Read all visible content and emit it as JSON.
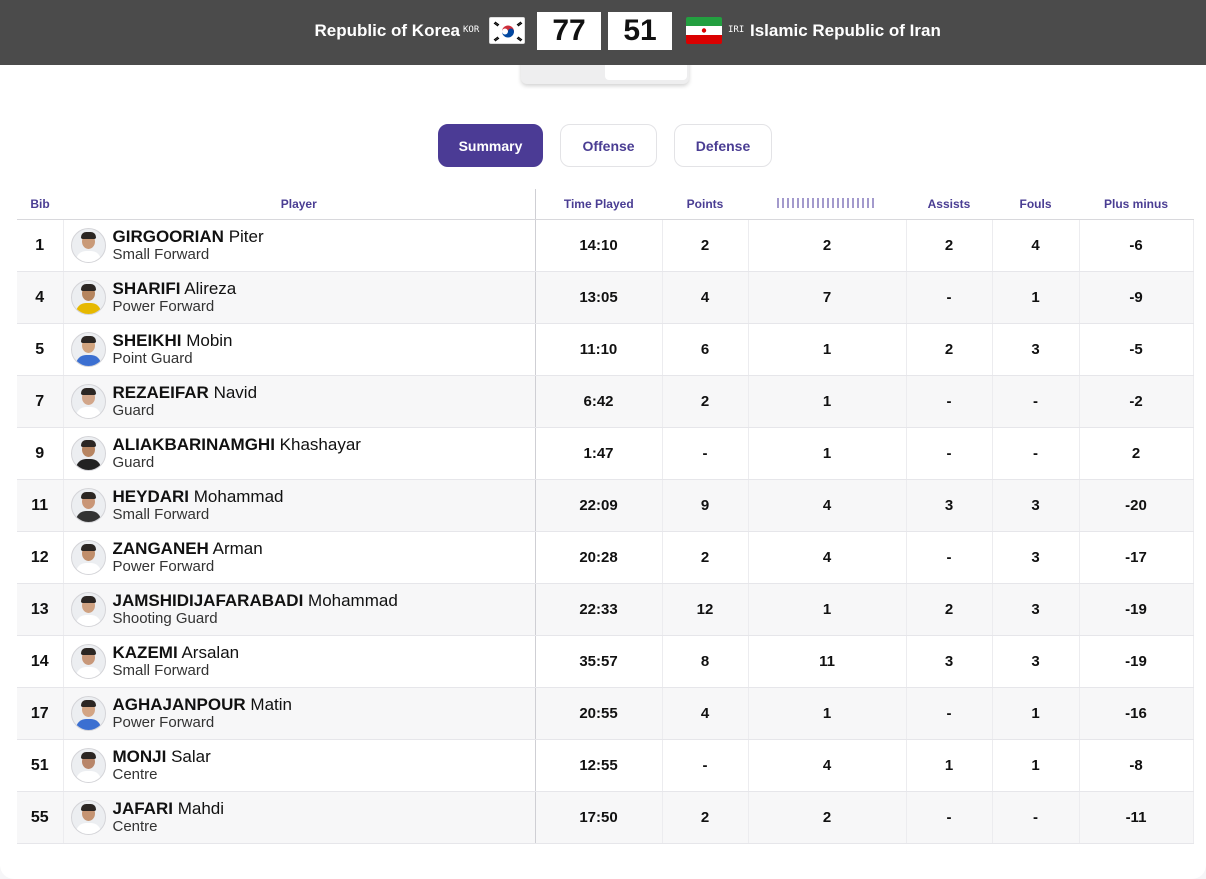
{
  "header": {
    "home": {
      "name": "Republic of Korea",
      "code": "KOR",
      "score": "77"
    },
    "away": {
      "name": "Islamic Republic of Iran",
      "code": "IRI",
      "score": "51"
    }
  },
  "switcher": {
    "home_code": "KOR",
    "away_code": "IRI"
  },
  "tabs": [
    {
      "label": "Summary",
      "active": true
    },
    {
      "label": "Offense",
      "active": false
    },
    {
      "label": "Defense",
      "active": false
    }
  ],
  "columns": {
    "bib": "Bib",
    "player": "Player",
    "time": "Time Played",
    "points": "Points",
    "assists": "Assists",
    "fouls": "Fouls",
    "plusminus": "Plus minus"
  },
  "players": [
    {
      "bib": "1",
      "last": "GIRGOORIAN",
      "first": "Piter",
      "pos": "Small Forward",
      "time": "14:10",
      "points": "2",
      "col5": "2",
      "assists": "2",
      "fouls": "4",
      "pm": "-6"
    },
    {
      "bib": "4",
      "last": "SHARIFI",
      "first": "Alireza",
      "pos": "Power Forward",
      "time": "13:05",
      "points": "4",
      "col5": "7",
      "assists": "-",
      "fouls": "1",
      "pm": "-9"
    },
    {
      "bib": "5",
      "last": "SHEIKHI",
      "first": "Mobin",
      "pos": "Point Guard",
      "time": "11:10",
      "points": "6",
      "col5": "1",
      "assists": "2",
      "fouls": "3",
      "pm": "-5"
    },
    {
      "bib": "7",
      "last": "REZAEIFAR",
      "first": "Navid",
      "pos": "Guard",
      "time": "6:42",
      "points": "2",
      "col5": "1",
      "assists": "-",
      "fouls": "-",
      "pm": "-2"
    },
    {
      "bib": "9",
      "last": "ALIAKBARINAMGHI",
      "first": "Khashayar",
      "pos": "Guard",
      "time": "1:47",
      "points": "-",
      "col5": "1",
      "assists": "-",
      "fouls": "-",
      "pm": "2"
    },
    {
      "bib": "11",
      "last": "HEYDARI",
      "first": "Mohammad",
      "pos": "Small Forward",
      "time": "22:09",
      "points": "9",
      "col5": "4",
      "assists": "3",
      "fouls": "3",
      "pm": "-20"
    },
    {
      "bib": "12",
      "last": "ZANGANEH",
      "first": "Arman",
      "pos": "Power Forward",
      "time": "20:28",
      "points": "2",
      "col5": "4",
      "assists": "-",
      "fouls": "3",
      "pm": "-17"
    },
    {
      "bib": "13",
      "last": "JAMSHIDIJAFARABADI",
      "first": "Mohammad",
      "pos": "Shooting Guard",
      "time": "22:33",
      "points": "12",
      "col5": "1",
      "assists": "2",
      "fouls": "3",
      "pm": "-19"
    },
    {
      "bib": "14",
      "last": "KAZEMI",
      "first": "Arsalan",
      "pos": "Small Forward",
      "time": "35:57",
      "points": "8",
      "col5": "11",
      "assists": "3",
      "fouls": "3",
      "pm": "-19"
    },
    {
      "bib": "17",
      "last": "AGHAJANPOUR",
      "first": "Matin",
      "pos": "Power Forward",
      "time": "20:55",
      "points": "4",
      "col5": "1",
      "assists": "-",
      "fouls": "1",
      "pm": "-16"
    },
    {
      "bib": "51",
      "last": "MONJI",
      "first": "Salar",
      "pos": "Centre",
      "time": "12:55",
      "points": "-",
      "col5": "4",
      "assists": "1",
      "fouls": "1",
      "pm": "-8"
    },
    {
      "bib": "55",
      "last": "JAFARI",
      "first": "Mahdi",
      "pos": "Centre",
      "time": "17:50",
      "points": "2",
      "col5": "2",
      "assists": "-",
      "fouls": "-",
      "pm": "-11"
    }
  ],
  "avatars": [
    {
      "skin": "#c99a78",
      "shirt": "#ffffff"
    },
    {
      "skin": "#b5855f",
      "shirt": "#e6b800"
    },
    {
      "skin": "#d1a47f",
      "shirt": "#3b6fd1"
    },
    {
      "skin": "#d2a68a",
      "shirt": "#ffffff"
    },
    {
      "skin": "#b78562",
      "shirt": "#222222"
    },
    {
      "skin": "#c99677",
      "shirt": "#333333"
    },
    {
      "skin": "#c08e6b",
      "shirt": "#ffffff"
    },
    {
      "skin": "#cfa282",
      "shirt": "#ffffff"
    },
    {
      "skin": "#c8987a",
      "shirt": "#ffffff"
    },
    {
      "skin": "#d3a584",
      "shirt": "#3b6fd1"
    },
    {
      "skin": "#b8866a",
      "shirt": "#ffffff"
    },
    {
      "skin": "#c59473",
      "shirt": "#ffffff"
    }
  ]
}
